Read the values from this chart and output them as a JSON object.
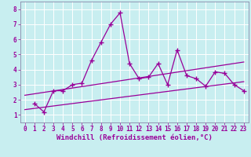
{
  "xlabel": "Windchill (Refroidissement éolien,°C)",
  "bg_color": "#c8eef0",
  "grid_color": "#aadddd",
  "line_color": "#990099",
  "spine_color": "#8888aa",
  "xlim": [
    -0.5,
    23.5
  ],
  "ylim": [
    0.5,
    8.5
  ],
  "xticks": [
    0,
    1,
    2,
    3,
    4,
    5,
    6,
    7,
    8,
    9,
    10,
    11,
    12,
    13,
    14,
    15,
    16,
    17,
    18,
    19,
    20,
    21,
    22,
    23
  ],
  "yticks": [
    1,
    2,
    3,
    4,
    5,
    6,
    7,
    8
  ],
  "line1_x": [
    1,
    2,
    3,
    4,
    5,
    6,
    7,
    8,
    9,
    10,
    11,
    12,
    13,
    14,
    15,
    16,
    17,
    18,
    19,
    20,
    21,
    22,
    23
  ],
  "line1_y": [
    1.75,
    1.2,
    2.6,
    2.6,
    3.0,
    3.1,
    4.6,
    5.8,
    7.0,
    7.75,
    4.4,
    3.4,
    3.5,
    4.4,
    3.0,
    5.3,
    3.6,
    3.4,
    2.9,
    3.85,
    3.75,
    3.0,
    2.6
  ],
  "line2_x": [
    0,
    23
  ],
  "line2_y": [
    1.35,
    3.2
  ],
  "line3_x": [
    0,
    23
  ],
  "line3_y": [
    2.3,
    4.5
  ],
  "line_width": 0.9,
  "tick_fontsize": 5.5,
  "xlabel_fontsize": 6.5
}
